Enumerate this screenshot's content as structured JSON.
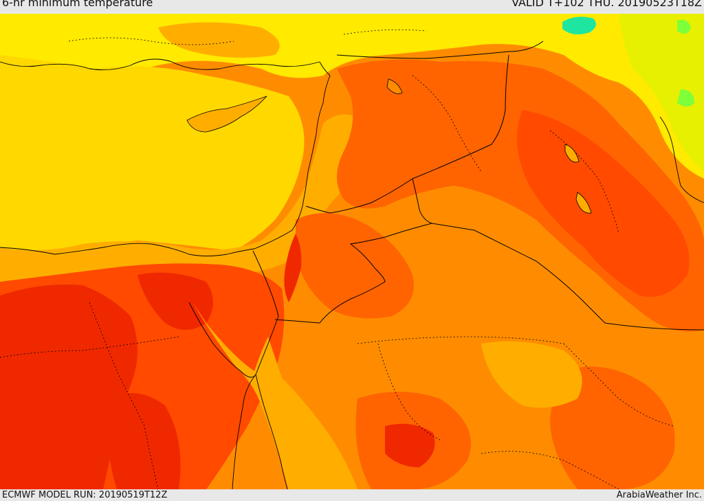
{
  "header": {
    "title": "6-hr minimum temperature",
    "valid_time": "VALID T+102 THU. 20190523T18Z"
  },
  "footer": {
    "model_run": "ECMWF MODEL RUN: 20190519T12Z",
    "credit": "ArabiaWeather Inc."
  },
  "colors": {
    "yellow": "#ffd800",
    "yellow_light": "#ffea00",
    "yellow_green": "#e6f000",
    "amber": "#ffae00",
    "orange": "#ff8c00",
    "orange_dark": "#ff6400",
    "red_orange": "#ff4a00",
    "red": "#f02800",
    "green": "#7dff3a",
    "teal": "#1ee6a0"
  }
}
